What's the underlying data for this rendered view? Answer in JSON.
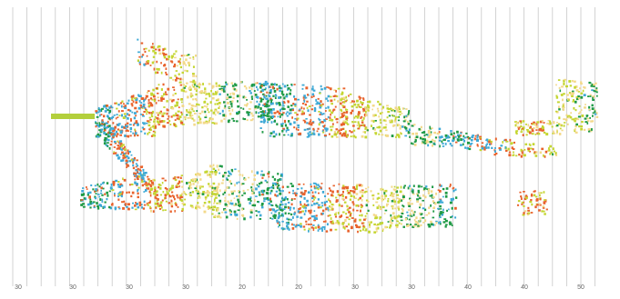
{
  "figure": {
    "tick_labels": [
      "30",
      "30",
      "30",
      "30",
      "20",
      "20",
      "30",
      "30",
      "40",
      "40",
      "50"
    ],
    "gridline_count": 42,
    "colors": {
      "gridline": "#c8c8c8",
      "green": "#1f9a45",
      "teal": "#3ea9d6",
      "orange": "#e8622c",
      "yellow_green": "#c4d632",
      "light_yellow": "#f3d98a",
      "stem": "#b3cf3c"
    }
  }
}
